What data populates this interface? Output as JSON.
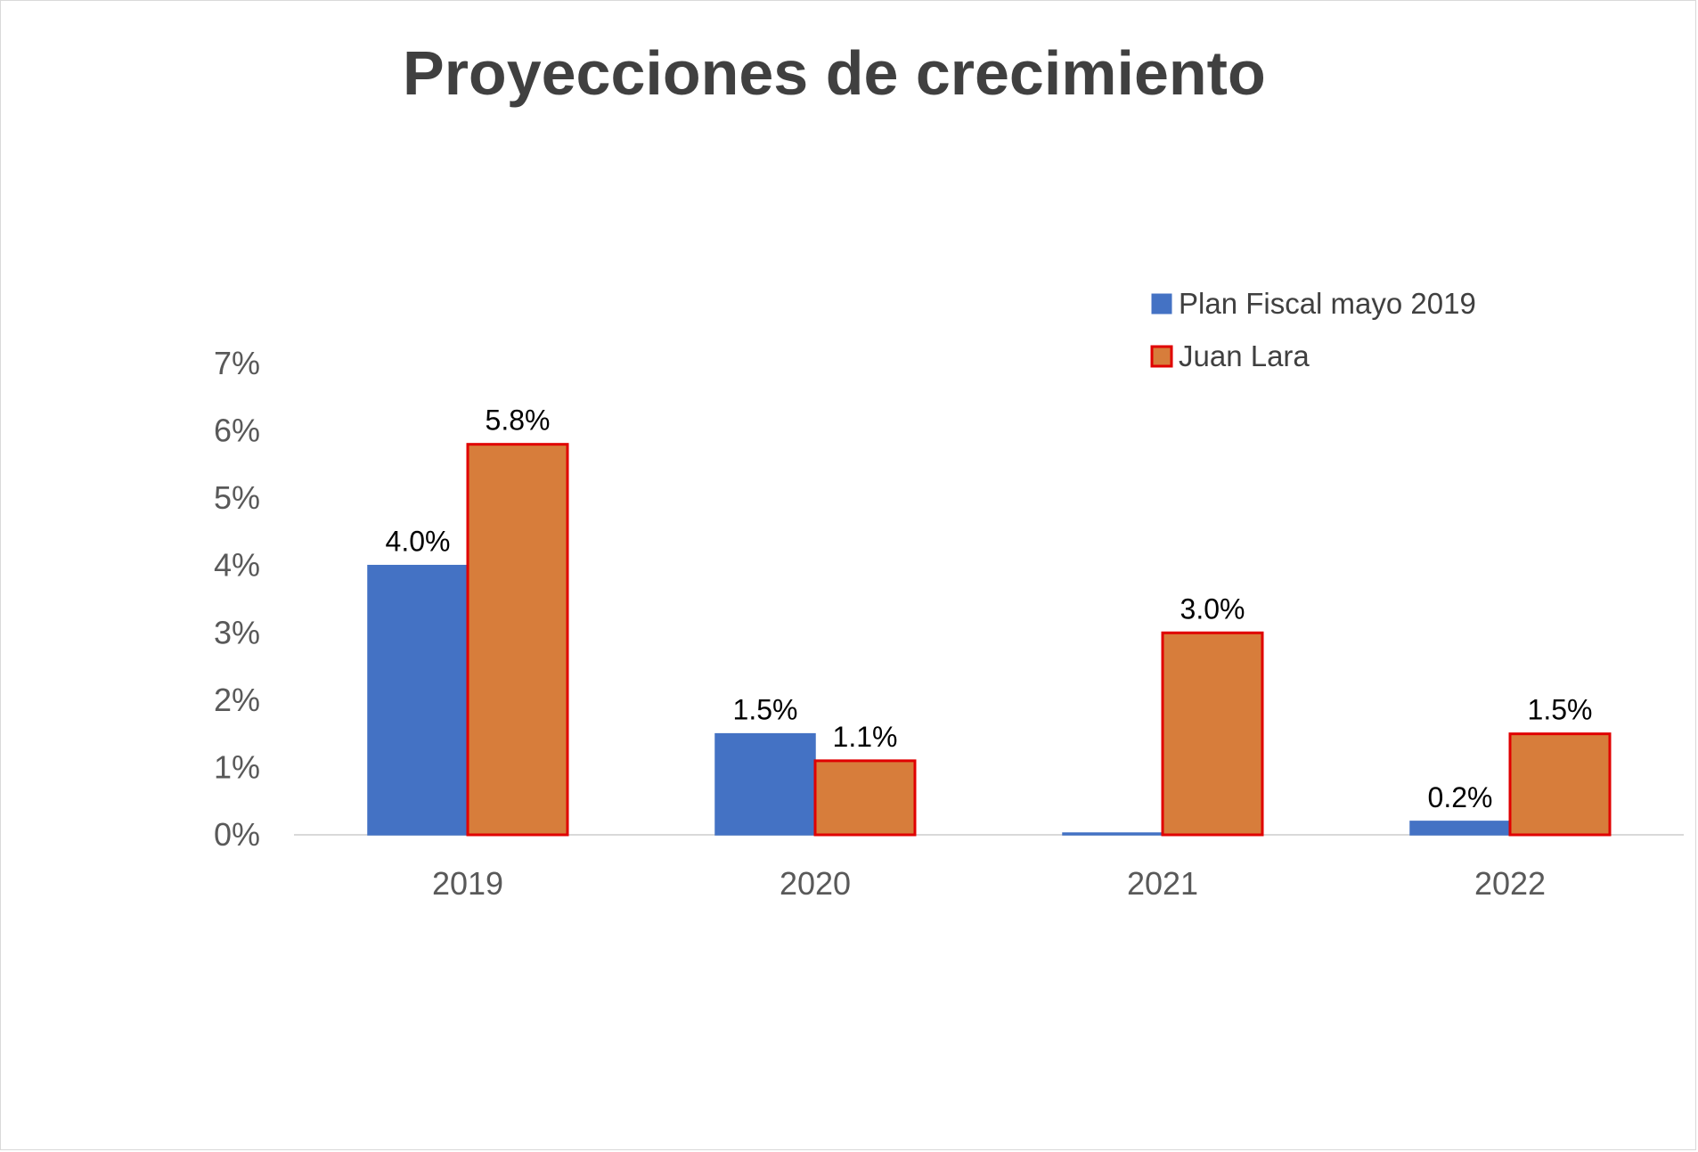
{
  "chart_data": {
    "type": "bar",
    "title": "Proyecciones de crecimiento",
    "categories": [
      "2019",
      "2020",
      "2021",
      "2022"
    ],
    "series": [
      {
        "name": "Plan Fiscal mayo 2019",
        "values": [
          4.0,
          1.5,
          0.0,
          0.2
        ],
        "labels": [
          "4.0%",
          "1.5%",
          "",
          "0.2%"
        ],
        "color": "#4472c4",
        "border": "#4472c4"
      },
      {
        "name": "Juan Lara",
        "values": [
          5.8,
          1.1,
          3.0,
          1.5
        ],
        "labels": [
          "5.8%",
          "1.1%",
          "3.0%",
          "1.5%"
        ],
        "color": "#d77d3b",
        "border": "#e00000"
      }
    ],
    "yticks": [
      "0%",
      "1%",
      "2%",
      "3%",
      "4%",
      "5%",
      "6%",
      "7%"
    ],
    "ylim": [
      0,
      7
    ],
    "legend_position": "top-right",
    "grid": false
  }
}
